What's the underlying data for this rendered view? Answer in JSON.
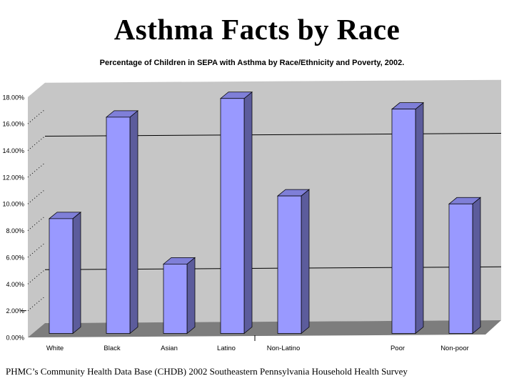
{
  "page": {
    "title": "Asthma Facts by Race",
    "footer": "PHMC’s Community Health Data Base (CHDB) 2002 Southeastern Pennsylvania Household Health Survey"
  },
  "chart_data": {
    "type": "bar",
    "is_3d": true,
    "title": "Percentage of Children in SEPA with Asthma by Race/Ethnicity and Poverty, 2002.",
    "xlabel": "",
    "ylabel": "",
    "categories": [
      "White",
      "Black",
      "Asian",
      "Latino",
      "Non-Latino",
      "",
      "Poor",
      "Non-poor"
    ],
    "values": [
      8.6,
      16.2,
      5.2,
      17.6,
      10.3,
      null,
      16.8,
      9.7
    ],
    "ylim": [
      0,
      18
    ],
    "ytick_step": 2,
    "ytick_labels": [
      "0.00%",
      "2.00%",
      "4.00%",
      "6.00%",
      "8.00%",
      "10.00%",
      "12.00%",
      "14.00%",
      "16.00%",
      "18.00%"
    ],
    "back_wall_gridlines": [
      4,
      14
    ],
    "side_wall_dotted_gridlines": [
      2,
      4,
      6,
      8,
      10,
      12,
      14,
      16
    ],
    "y_axis_tick_value": 2,
    "category_axis_tick_after_index": 4,
    "legend": "none",
    "grid": "partial",
    "colors": {
      "bar_front": "#9999ff",
      "bar_top": "#7f7fd8",
      "bar_side": "#5c5c9c",
      "bar_outline": "#000000",
      "wall": "#c6c6c6",
      "floor": "#7d7d7d",
      "gridline": "#000000",
      "text": "#000000",
      "background": "#ffffff"
    }
  }
}
